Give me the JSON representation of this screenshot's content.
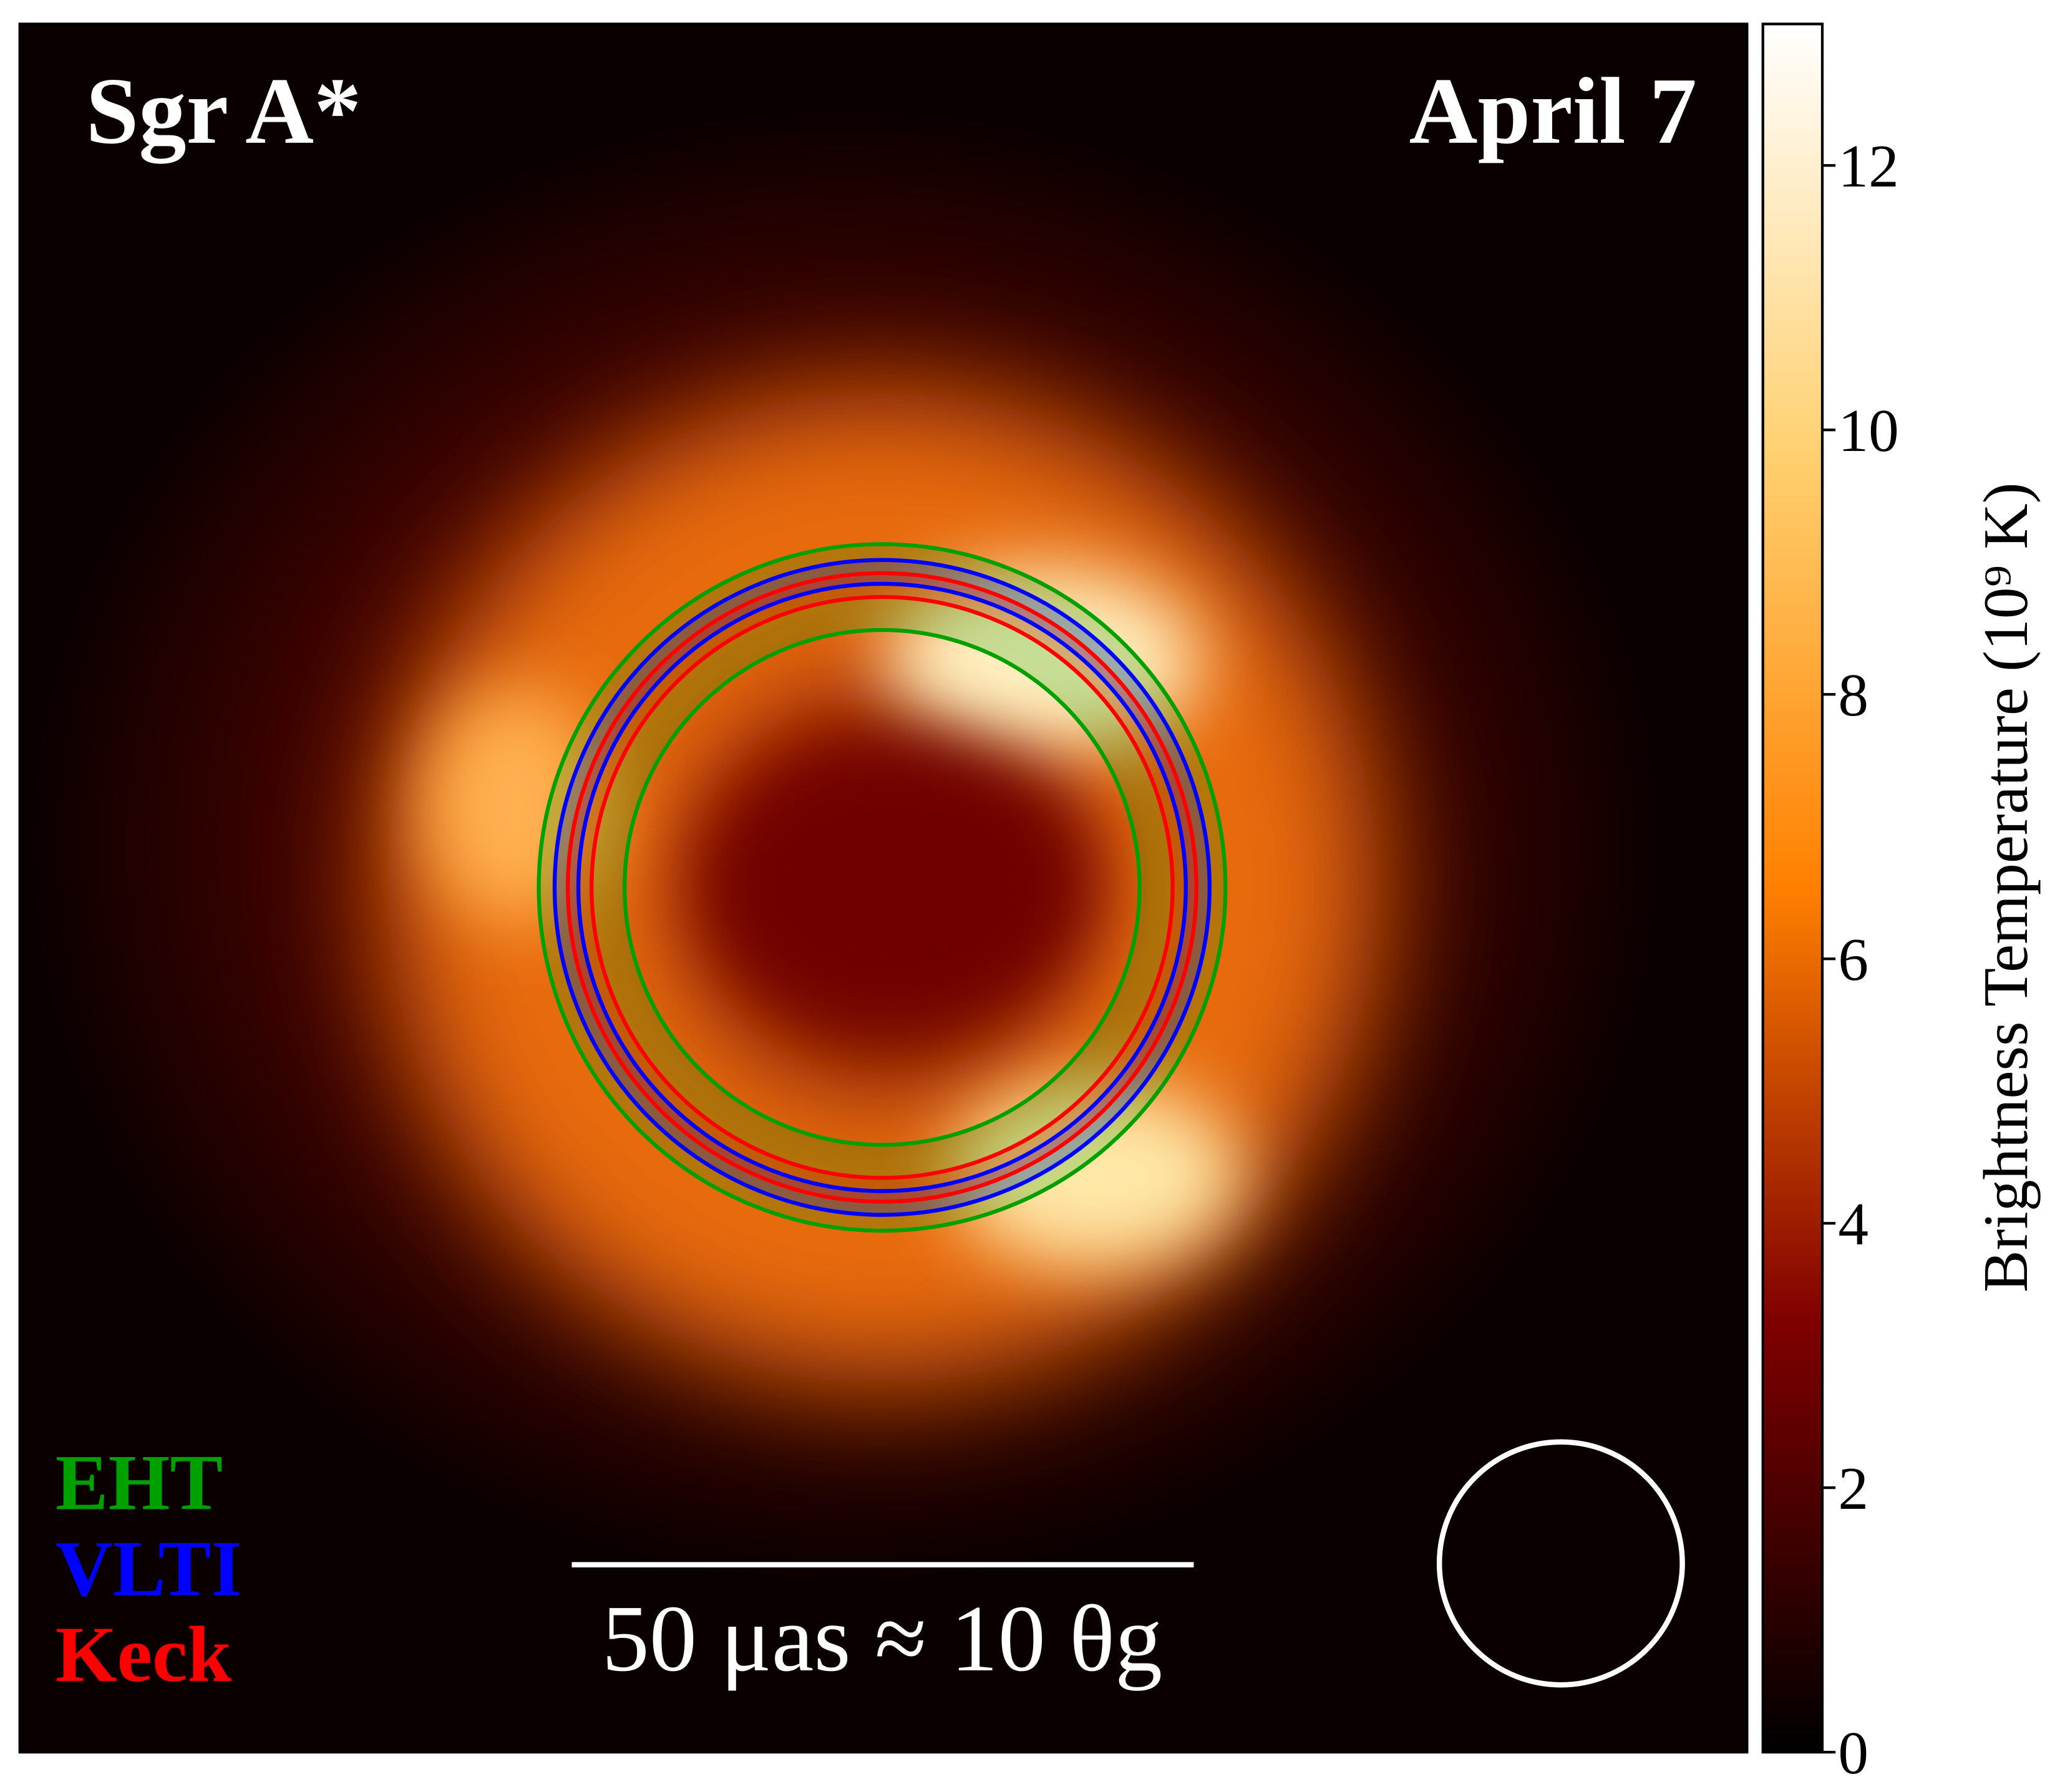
{
  "chart_data": {
    "type": "image",
    "title": "Sgr A*",
    "subtitle": "April 7",
    "series": [
      {
        "name": "EHT",
        "color": "#00a000"
      },
      {
        "name": "VLTI",
        "color": "#0000ff"
      },
      {
        "name": "Keck",
        "color": "#ff0000"
      }
    ],
    "scale_bar_label": "50 μas ≈ 10 θg",
    "colorbar": {
      "label": "Brightness Temperature (10⁹ K)",
      "ylim": [
        0,
        13.07
      ],
      "yticks": [
        0,
        2,
        4,
        6,
        8,
        10,
        12
      ]
    }
  }
}
